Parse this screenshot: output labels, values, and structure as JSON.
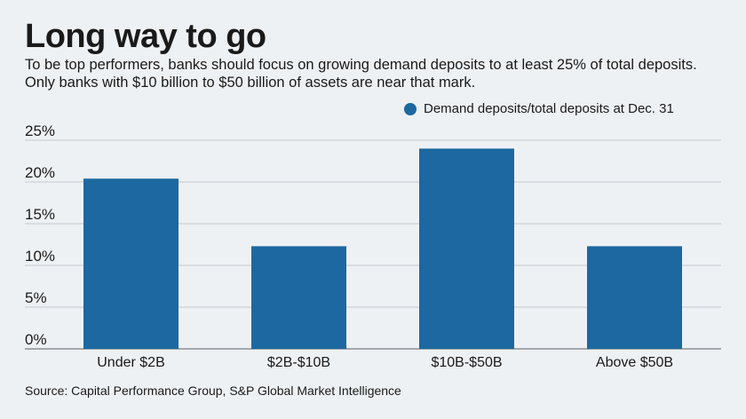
{
  "title": "Long way to go",
  "subtitle": "To be top performers, banks should focus on growing demand deposits to at least 25% of total deposits. Only banks with $10 billion to $50 billion of assets are near that mark.",
  "source": "Source: Capital Performance Group, S&P Global Market Intelligence",
  "colors": {
    "bar": "#1d68a0",
    "grid": "#c4c8cc",
    "axis": "#8a8f94"
  },
  "chart_data": {
    "type": "bar",
    "categories": [
      "Under $2B",
      "$2B-$10B",
      "$10B-$50B",
      "Above $50B"
    ],
    "series": [
      {
        "name": "Demand deposits/total deposits at Dec. 31",
        "values": [
          20.4,
          12.3,
          24.0,
          12.3
        ]
      }
    ],
    "yticks": [
      "25%",
      "20%",
      "15%",
      "10%",
      "5%",
      "0%"
    ],
    "ylim": [
      0,
      25
    ],
    "grid": true,
    "legend": "top-right"
  }
}
